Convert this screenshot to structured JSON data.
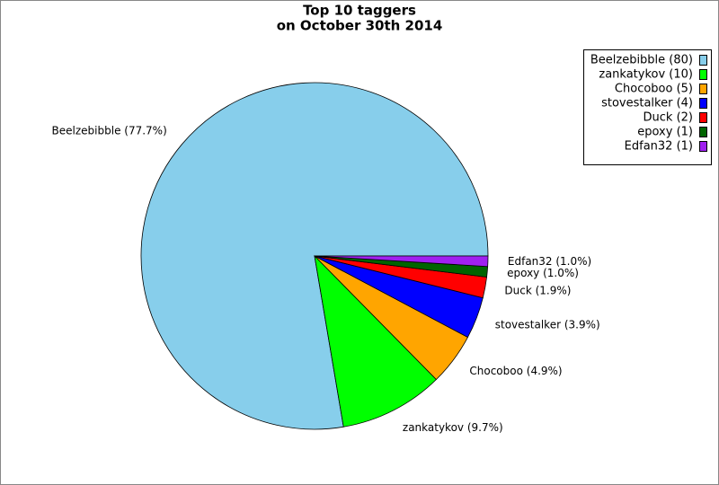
{
  "chart_data": {
    "type": "pie",
    "title": [
      "Top 10 taggers",
      "on October 30th 2014"
    ],
    "values": [
      80,
      10,
      5,
      4,
      2,
      1,
      1
    ],
    "value_labels": [
      "Beelzebibble (80)",
      "zankatykov (10)",
      "Chocoboo (5)",
      "stovestalker (4)",
      "Duck (2)",
      "epoxy (1)",
      "Edfan32 (1)"
    ],
    "percentages": [
      77.7,
      9.7,
      4.9,
      3.9,
      1.9,
      1.0,
      1.0
    ],
    "percentage_labels": [
      "Beelzebibble (77.7%)",
      "zankatykov (9.7%)",
      "Chocoboo (4.9%)",
      "stovestalker (3.9%)",
      "Duck (1.9%)",
      "epoxy (1.0%)",
      "Edfan32 (1.0%)"
    ],
    "colors": [
      "#87ceeb",
      "#00ff00",
      "#ffa500",
      "#0000ff",
      "#ff0000",
      "#006400",
      "#a020f0"
    ],
    "legend": "top-right"
  }
}
